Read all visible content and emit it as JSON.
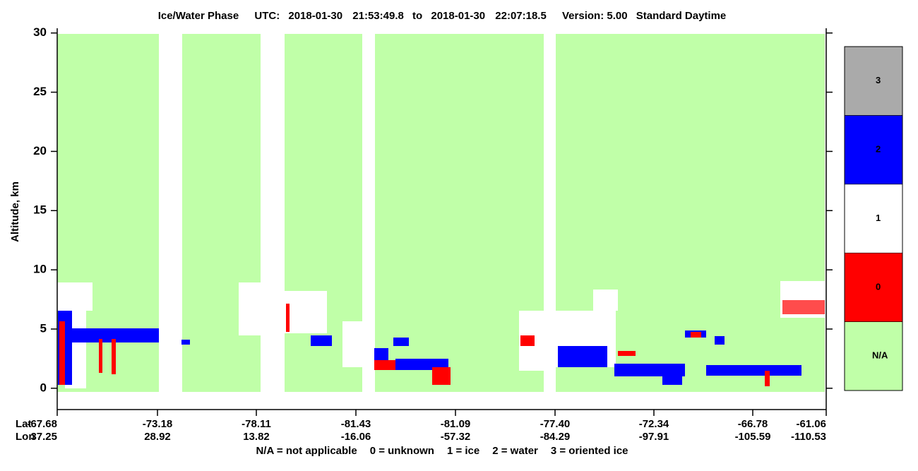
{
  "chart_data": {
    "type": "heatmap",
    "title": "Ice/Water Phase",
    "utc_label": "UTC:",
    "start_date": "2018-01-30",
    "start_time": "21:53:49.8",
    "to_label": "to",
    "end_date": "2018-01-30",
    "end_time": "22:07:18.5",
    "version": "Version: 5.00",
    "mode": "Standard Daytime",
    "ylabel": "Altitude, km",
    "ylim": [
      -1.8,
      30.4
    ],
    "yticks": [
      0,
      5,
      10,
      15,
      20,
      25,
      30
    ],
    "lat_label": "Lat",
    "lon_label": "Lon",
    "lat_ticks": [
      "-67.68",
      "-73.18",
      "-78.11",
      "-81.43",
      "-81.09",
      "-77.40",
      "-72.34",
      "-66.78",
      "-61.06"
    ],
    "lon_ticks": [
      "37.25",
      "28.92",
      "13.82",
      "-16.06",
      "-57.32",
      "-84.29",
      "-97.91",
      "-105.59",
      "-110.53"
    ],
    "colorbar": {
      "categories": [
        "N/A",
        "0",
        "1",
        "2",
        "3"
      ],
      "colors": [
        "#c0ffa8",
        "#ff0000",
        "#ffffff",
        "#0000ff",
        "#aaaaaa"
      ]
    },
    "legend_entries": [
      "N/A = not applicable",
      "0 = unknown",
      "1 = ice",
      "2 = water",
      "3 = oriented ice"
    ]
  }
}
